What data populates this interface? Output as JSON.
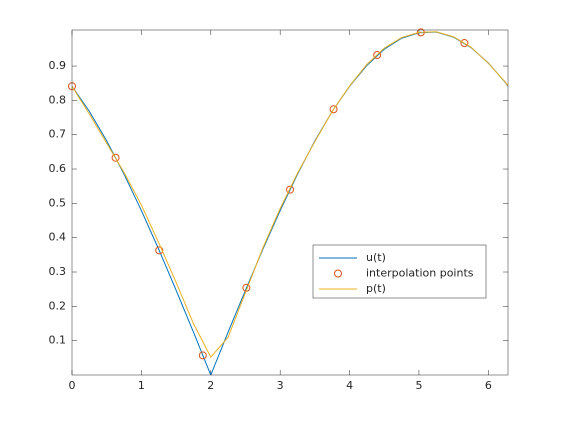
{
  "chart_data": {
    "type": "line",
    "xlim": [
      0,
      6.2832
    ],
    "xticks": [
      0,
      1,
      2,
      3,
      4,
      5,
      6
    ],
    "ylim": [
      0,
      1.005
    ],
    "yticks": [
      0.1,
      0.2,
      0.3,
      0.4,
      0.5,
      0.6,
      0.7,
      0.8,
      0.9
    ],
    "legend": "center-right",
    "series": [
      {
        "name": "u(t)",
        "color": "#0072BD",
        "style": "line",
        "x": [
          0,
          0.25,
          0.5,
          0.75,
          1,
          1.25,
          1.5,
          1.75,
          2,
          2.25,
          2.5,
          2.75,
          3,
          3.25,
          3.5,
          3.75,
          4,
          4.25,
          4.5,
          4.75,
          5,
          5.25,
          5.5,
          5.75,
          6,
          6.25,
          6.2832
        ],
        "values": [
          0.841,
          0.768,
          0.682,
          0.585,
          0.479,
          0.366,
          0.247,
          0.125,
          0,
          0.125,
          0.247,
          0.366,
          0.479,
          0.585,
          0.682,
          0.768,
          0.841,
          0.902,
          0.949,
          0.981,
          0.997,
          0.999,
          0.984,
          0.954,
          0.909,
          0.851,
          0.841
        ]
      },
      {
        "name": "interpolation points",
        "color": "#D95319",
        "style": "marker",
        "x": [
          0,
          0.628,
          1.257,
          1.885,
          2.513,
          3.142,
          3.77,
          4.398,
          5.027,
          5.655
        ],
        "values": [
          0.841,
          0.633,
          0.363,
          0.057,
          0.254,
          0.54,
          0.774,
          0.932,
          0.998,
          0.967
        ]
      },
      {
        "name": "p(t)",
        "color": "#EDB120",
        "style": "line",
        "x": [
          0,
          0.25,
          0.5,
          0.75,
          1,
          1.25,
          1.5,
          1.75,
          2,
          2.25,
          2.5,
          2.75,
          3,
          3.25,
          3.5,
          3.75,
          4,
          4.25,
          4.5,
          4.75,
          5,
          5.25,
          5.5,
          5.75,
          6,
          6.25,
          6.2832
        ],
        "values": [
          0.841,
          0.76,
          0.675,
          0.59,
          0.495,
          0.385,
          0.27,
          0.15,
          0.052,
          0.11,
          0.24,
          0.37,
          0.485,
          0.588,
          0.68,
          0.768,
          0.842,
          0.905,
          0.952,
          0.983,
          0.998,
          1.0,
          0.985,
          0.955,
          0.908,
          0.852,
          0.842
        ]
      }
    ]
  }
}
